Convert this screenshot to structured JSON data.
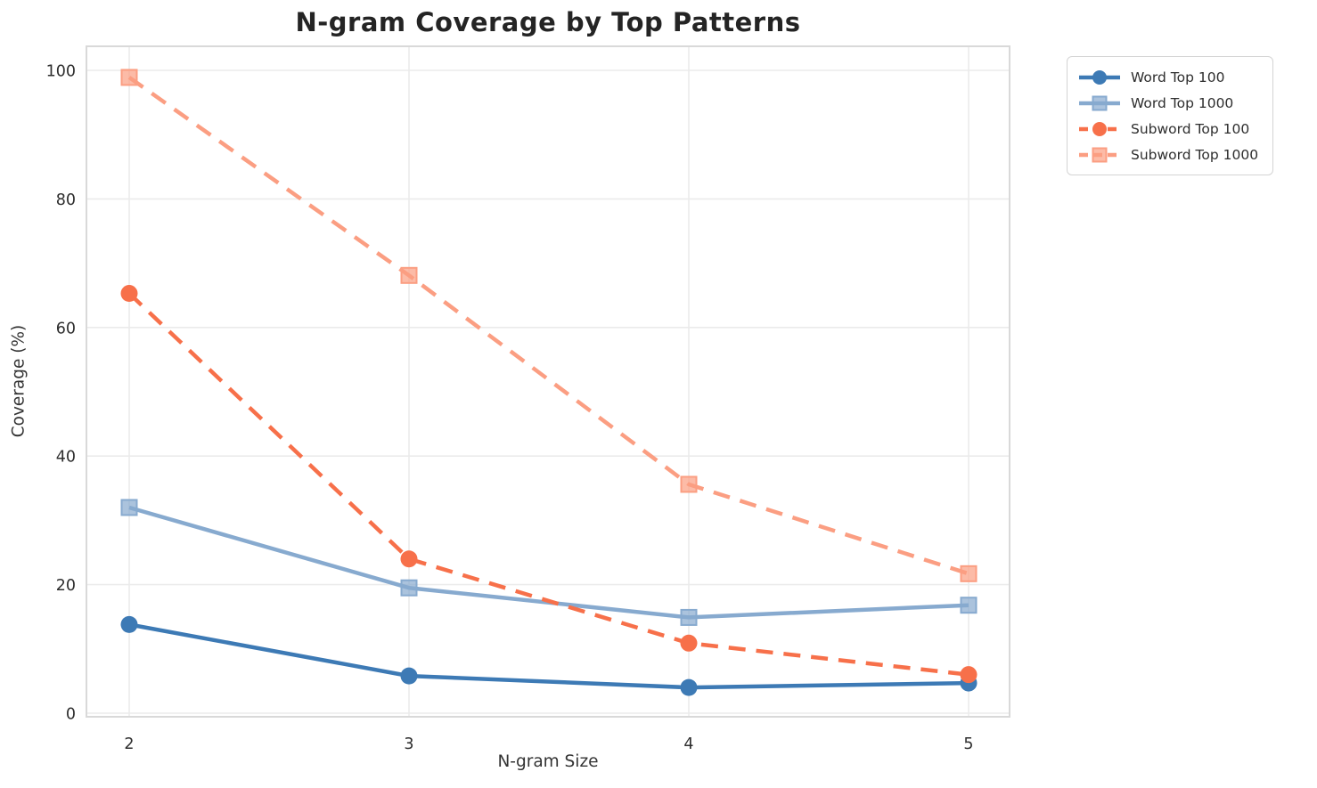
{
  "chart_data": {
    "type": "line",
    "title": "N-gram Coverage by Top Patterns",
    "xlabel": "N-gram Size",
    "ylabel": "Coverage (%)",
    "x": [
      2,
      3,
      4,
      5
    ],
    "xtick_labels": [
      "2",
      "3",
      "4",
      "5"
    ],
    "yticks": [
      0,
      20,
      40,
      60,
      80,
      100
    ],
    "ytick_labels": [
      "0",
      "20",
      "40",
      "60",
      "80",
      "100"
    ],
    "xlim": [
      1.85,
      5.15
    ],
    "ylim": [
      -1,
      104
    ],
    "grid": true,
    "legend_position": "upper right, outside plot",
    "series": [
      {
        "name": "Word Top 100",
        "values": [
          13.8,
          5.8,
          4.0,
          4.7
        ],
        "color": "#3d7ab5",
        "dashed": false,
        "marker": "circle"
      },
      {
        "name": "Word Top 1000",
        "values": [
          32.0,
          19.5,
          14.9,
          16.8
        ],
        "color": "#87aacf",
        "dashed": false,
        "marker": "square"
      },
      {
        "name": "Subword Top 100",
        "values": [
          65.3,
          24.0,
          10.9,
          6.0
        ],
        "color": "#f7704a",
        "dashed": true,
        "marker": "circle"
      },
      {
        "name": "Subword Top 1000",
        "values": [
          98.9,
          68.1,
          35.6,
          21.7
        ],
        "color": "#fb9e82",
        "dashed": true,
        "marker": "square"
      }
    ]
  }
}
